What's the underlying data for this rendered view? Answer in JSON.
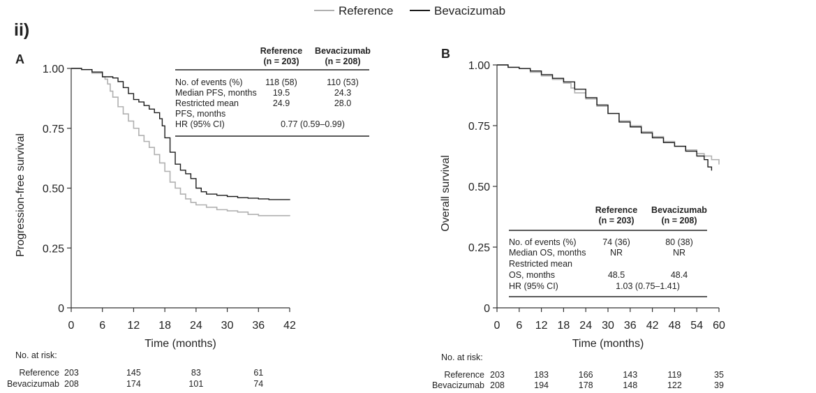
{
  "figure_label": "ii)",
  "legend": [
    {
      "name": "Reference",
      "color": "#b0b0b0"
    },
    {
      "name": "Bevacizumab",
      "color": "#1a1a1a"
    }
  ],
  "chart_data": [
    {
      "panel": "A",
      "type": "line",
      "xlabel": "Time (months)",
      "ylabel": "Progression-free survival",
      "xlim": [
        0,
        42
      ],
      "ylim": [
        0,
        1
      ],
      "x_ticks": [
        0,
        6,
        12,
        18,
        24,
        30,
        36,
        42
      ],
      "y_ticks": [
        {
          "v": 0,
          "label": "0"
        },
        {
          "v": 0.25,
          "label": "0.25"
        },
        {
          "v": 0.5,
          "label": "0.50"
        },
        {
          "v": 0.75,
          "label": "0.75"
        },
        {
          "v": 1,
          "label": "1.00"
        }
      ],
      "series": [
        {
          "name": "Reference",
          "color": "#b0b0b0",
          "points": [
            [
              0,
              1.0
            ],
            [
              2,
              0.995
            ],
            [
              4,
              0.98
            ],
            [
              6,
              0.965
            ],
            [
              6.5,
              0.955
            ],
            [
              7,
              0.935
            ],
            [
              7.5,
              0.905
            ],
            [
              8,
              0.88
            ],
            [
              9,
              0.84
            ],
            [
              10,
              0.81
            ],
            [
              11,
              0.78
            ],
            [
              12,
              0.75
            ],
            [
              13,
              0.72
            ],
            [
              14,
              0.695
            ],
            [
              15,
              0.67
            ],
            [
              16,
              0.64
            ],
            [
              17,
              0.605
            ],
            [
              18,
              0.57
            ],
            [
              19,
              0.525
            ],
            [
              20,
              0.5
            ],
            [
              21,
              0.475
            ],
            [
              22,
              0.455
            ],
            [
              23,
              0.44
            ],
            [
              24,
              0.43
            ],
            [
              26,
              0.42
            ],
            [
              28,
              0.41
            ],
            [
              30,
              0.405
            ],
            [
              32,
              0.4
            ],
            [
              34,
              0.39
            ],
            [
              36,
              0.385
            ],
            [
              42,
              0.383
            ]
          ]
        },
        {
          "name": "Bevacizumab",
          "color": "#1a1a1a",
          "points": [
            [
              0,
              1.0
            ],
            [
              2,
              0.995
            ],
            [
              4,
              0.985
            ],
            [
              6,
              0.965
            ],
            [
              8,
              0.96
            ],
            [
              9,
              0.945
            ],
            [
              10,
              0.92
            ],
            [
              11,
              0.895
            ],
            [
              12,
              0.87
            ],
            [
              13,
              0.86
            ],
            [
              14,
              0.845
            ],
            [
              15,
              0.83
            ],
            [
              16,
              0.815
            ],
            [
              17,
              0.79
            ],
            [
              17.5,
              0.76
            ],
            [
              18,
              0.71
            ],
            [
              19,
              0.65
            ],
            [
              20,
              0.6
            ],
            [
              21,
              0.575
            ],
            [
              22,
              0.56
            ],
            [
              23,
              0.54
            ],
            [
              24,
              0.5
            ],
            [
              25,
              0.485
            ],
            [
              26,
              0.475
            ],
            [
              28,
              0.47
            ],
            [
              30,
              0.465
            ],
            [
              32,
              0.46
            ],
            [
              34,
              0.458
            ],
            [
              36,
              0.455
            ],
            [
              38,
              0.452
            ],
            [
              42,
              0.45
            ]
          ]
        }
      ],
      "table": {
        "col_headers": [
          "Reference\n(n = 203)",
          "Bevacizumab\n(n = 208)"
        ],
        "rows": [
          {
            "label": "No. of events (%)",
            "reference": "118 (58)",
            "bevacizumab": "110 (53)"
          },
          {
            "label": "Median PFS, months",
            "reference": "19.5",
            "bevacizumab": "24.3"
          },
          {
            "label": "Restricted mean",
            "reference": "24.9",
            "bevacizumab": "28.0"
          },
          {
            "label": "PFS, months",
            "reference": "",
            "bevacizumab": ""
          },
          {
            "label": "HR (95% CI)",
            "combined": "0.77 (0.59–0.99)"
          }
        ]
      },
      "at_risk": {
        "title": "No. at risk:",
        "rows": [
          {
            "name": "Reference",
            "values": [
              {
                "x": 0,
                "n": 203
              },
              {
                "x": 12,
                "n": 145
              },
              {
                "x": 24,
                "n": 83
              },
              {
                "x": 36,
                "n": 61
              }
            ]
          },
          {
            "name": "Bevacizumab",
            "values": [
              {
                "x": 0,
                "n": 208
              },
              {
                "x": 12,
                "n": 174
              },
              {
                "x": 24,
                "n": 101
              },
              {
                "x": 36,
                "n": 74
              }
            ]
          }
        ]
      }
    },
    {
      "panel": "B",
      "type": "line",
      "xlabel": "Time (months)",
      "ylabel": "Overall survival",
      "xlim": [
        0,
        60
      ],
      "ylim": [
        0,
        1
      ],
      "x_ticks": [
        0,
        6,
        12,
        18,
        24,
        30,
        36,
        42,
        48,
        54,
        60
      ],
      "y_ticks": [
        {
          "v": 0,
          "label": "0"
        },
        {
          "v": 0.25,
          "label": "0.25"
        },
        {
          "v": 0.5,
          "label": "0.50"
        },
        {
          "v": 0.75,
          "label": "0.75"
        },
        {
          "v": 1,
          "label": "1.00"
        }
      ],
      "series": [
        {
          "name": "Reference",
          "color": "#b0b0b0",
          "points": [
            [
              0,
              1.0
            ],
            [
              3,
              0.99
            ],
            [
              6,
              0.985
            ],
            [
              9,
              0.97
            ],
            [
              12,
              0.955
            ],
            [
              15,
              0.94
            ],
            [
              18,
              0.925
            ],
            [
              20,
              0.905
            ],
            [
              21,
              0.885
            ],
            [
              24,
              0.86
            ],
            [
              27,
              0.83
            ],
            [
              30,
              0.8
            ],
            [
              33,
              0.77
            ],
            [
              36,
              0.75
            ],
            [
              39,
              0.725
            ],
            [
              42,
              0.705
            ],
            [
              45,
              0.685
            ],
            [
              48,
              0.665
            ],
            [
              51,
              0.65
            ],
            [
              54,
              0.635
            ],
            [
              56,
              0.625
            ],
            [
              58,
              0.61
            ],
            [
              60,
              0.59
            ]
          ]
        },
        {
          "name": "Bevacizumab",
          "color": "#1a1a1a",
          "points": [
            [
              0,
              1.0
            ],
            [
              3,
              0.99
            ],
            [
              6,
              0.985
            ],
            [
              9,
              0.975
            ],
            [
              12,
              0.96
            ],
            [
              15,
              0.945
            ],
            [
              18,
              0.93
            ],
            [
              21,
              0.9
            ],
            [
              24,
              0.865
            ],
            [
              27,
              0.835
            ],
            [
              30,
              0.8
            ],
            [
              33,
              0.765
            ],
            [
              36,
              0.745
            ],
            [
              39,
              0.72
            ],
            [
              42,
              0.7
            ],
            [
              45,
              0.68
            ],
            [
              48,
              0.665
            ],
            [
              51,
              0.645
            ],
            [
              54,
              0.625
            ],
            [
              56,
              0.61
            ],
            [
              57,
              0.58
            ],
            [
              58,
              0.565
            ]
          ]
        }
      ],
      "table": {
        "col_headers": [
          "Reference\n(n = 203)",
          "Bevacizumab\n(n = 208)"
        ],
        "rows": [
          {
            "label": "No. of events (%)",
            "reference": "74 (36)",
            "bevacizumab": "80 (38)"
          },
          {
            "label": "Median OS, months",
            "reference": "NR",
            "bevacizumab": "NR"
          },
          {
            "label": "Restricted mean",
            "reference": "",
            "bevacizumab": ""
          },
          {
            "label": "OS, months",
            "reference": "48.5",
            "bevacizumab": "48.4"
          },
          {
            "label": "HR (95% CI)",
            "combined": "1.03 (0.75–1.41)"
          }
        ]
      },
      "at_risk": {
        "title": "No. at risk:",
        "rows": [
          {
            "name": "Reference",
            "values": [
              {
                "x": 0,
                "n": 203
              },
              {
                "x": 12,
                "n": 183
              },
              {
                "x": 24,
                "n": 166
              },
              {
                "x": 36,
                "n": 143
              },
              {
                "x": 48,
                "n": 119
              },
              {
                "x": 60,
                "n": 35
              }
            ]
          },
          {
            "name": "Bevacizumab",
            "values": [
              {
                "x": 0,
                "n": 208
              },
              {
                "x": 12,
                "n": 194
              },
              {
                "x": 24,
                "n": 178
              },
              {
                "x": 36,
                "n": 148
              },
              {
                "x": 48,
                "n": 122
              },
              {
                "x": 60,
                "n": 39
              }
            ]
          }
        ]
      }
    }
  ]
}
